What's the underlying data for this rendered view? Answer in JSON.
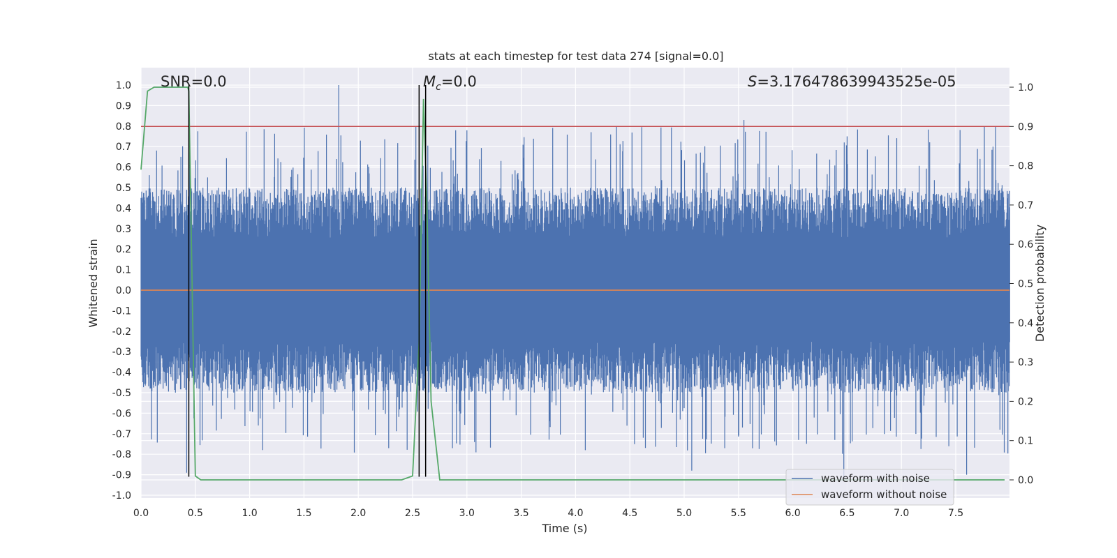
{
  "chart_data": {
    "type": "line",
    "title": "stats at each timestep for test data 274 [signal=0.0]",
    "xlabel": "Time (s)",
    "ylabel": "Whitened strain",
    "y2label": "Detection probability",
    "xlim": [
      0.0,
      8.0
    ],
    "ylim": [
      -1.05,
      1.05
    ],
    "y2lim": [
      -0.05,
      1.04
    ],
    "xticks": [
      "0.0",
      "0.5",
      "1.0",
      "1.5",
      "2.0",
      "2.5",
      "3.0",
      "3.5",
      "4.0",
      "4.5",
      "5.0",
      "5.5",
      "6.0",
      "6.5",
      "7.0",
      "7.5"
    ],
    "yticks": [
      "1.0",
      "0.9",
      "0.8",
      "0.7",
      "0.6",
      "0.5",
      "0.4",
      "0.3",
      "0.2",
      "0.1",
      "0.0",
      "-0.1",
      "-0.2",
      "-0.3",
      "-0.4",
      "-0.5",
      "-0.6",
      "-0.7",
      "-0.8",
      "-0.9",
      "-1.0"
    ],
    "y2ticks": [
      "1.0",
      "0.9",
      "0.8",
      "0.7",
      "0.6",
      "0.5",
      "0.4",
      "0.3",
      "0.2",
      "0.1",
      "0.0"
    ],
    "grid": true,
    "legend_position": "bottom-right",
    "series": [
      {
        "name": "waveform with noise",
        "color": "#4c72b0",
        "axis": "left",
        "description_values": {
          "typical_abs": 0.4,
          "max": 1.0,
          "min": -0.9
        }
      },
      {
        "name": "waveform without noise",
        "color": "#dd8452",
        "axis": "left",
        "values_constant": 0.0
      },
      {
        "name": "detection probability",
        "color": "#55a868",
        "axis": "right",
        "x": [
          0.0,
          0.06,
          0.12,
          0.2,
          0.3,
          0.35,
          0.43,
          0.44,
          0.5,
          0.55,
          0.6,
          1.0,
          1.5,
          2.0,
          2.4,
          2.5,
          2.56,
          2.6,
          2.63,
          2.67,
          2.75,
          3.0,
          4.0,
          5.0,
          6.0,
          7.0,
          7.95
        ],
        "values": [
          0.79,
          0.99,
          1.0,
          1.0,
          1.0,
          1.0,
          1.0,
          0.99,
          0.01,
          0.0,
          0.0,
          0.0,
          0.0,
          0.0,
          0.0,
          0.01,
          0.35,
          0.97,
          0.72,
          0.2,
          0.0,
          0.0,
          0.0,
          0.0,
          0.0,
          0.0,
          0.0
        ]
      }
    ],
    "threshold_line": {
      "value": 0.9,
      "axis": "right",
      "color": "#c44e52"
    },
    "vertical_lines": [
      0.44,
      2.56,
      2.62
    ],
    "vertical_line_color": "#000000",
    "annotations": {
      "snr": "SNR=0.0",
      "mc_symbol": "M",
      "mc_subscript": "c",
      "mc_value": "=0.0",
      "s_symbol": "S",
      "s_value": "=3.176478639943525e-05"
    }
  }
}
